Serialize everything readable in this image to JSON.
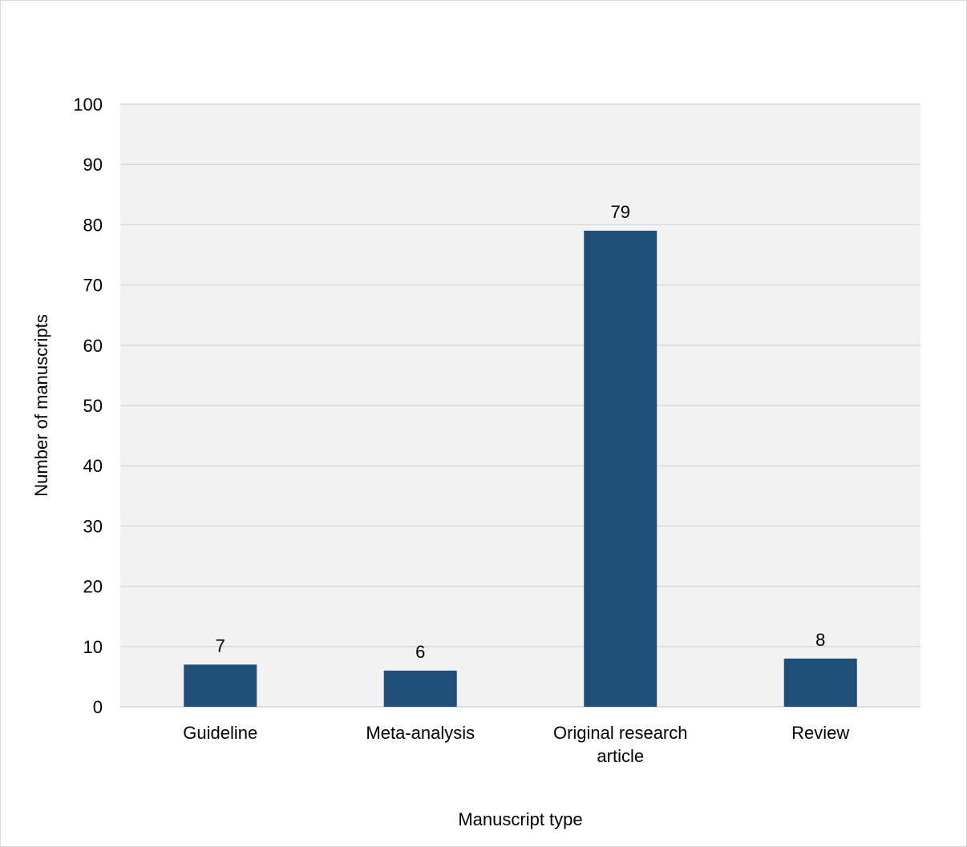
{
  "chart_data": {
    "type": "bar",
    "title": "",
    "xlabel": "Manuscript type",
    "ylabel": "Number of manuscripts",
    "categories": [
      [
        "Guideline"
      ],
      [
        "Meta-analysis"
      ],
      [
        "Original research",
        "article"
      ],
      [
        "Review"
      ]
    ],
    "values": [
      7,
      6,
      79,
      8
    ],
    "ylim": [
      0,
      100
    ],
    "yticks": [
      0,
      10,
      20,
      30,
      40,
      50,
      60,
      70,
      80,
      90,
      100
    ],
    "grid": true,
    "legend": "none",
    "colors": {
      "bar": "#1f4e79",
      "plot_background": "#f2f2f2",
      "gridline": "#d9d9d9"
    }
  }
}
